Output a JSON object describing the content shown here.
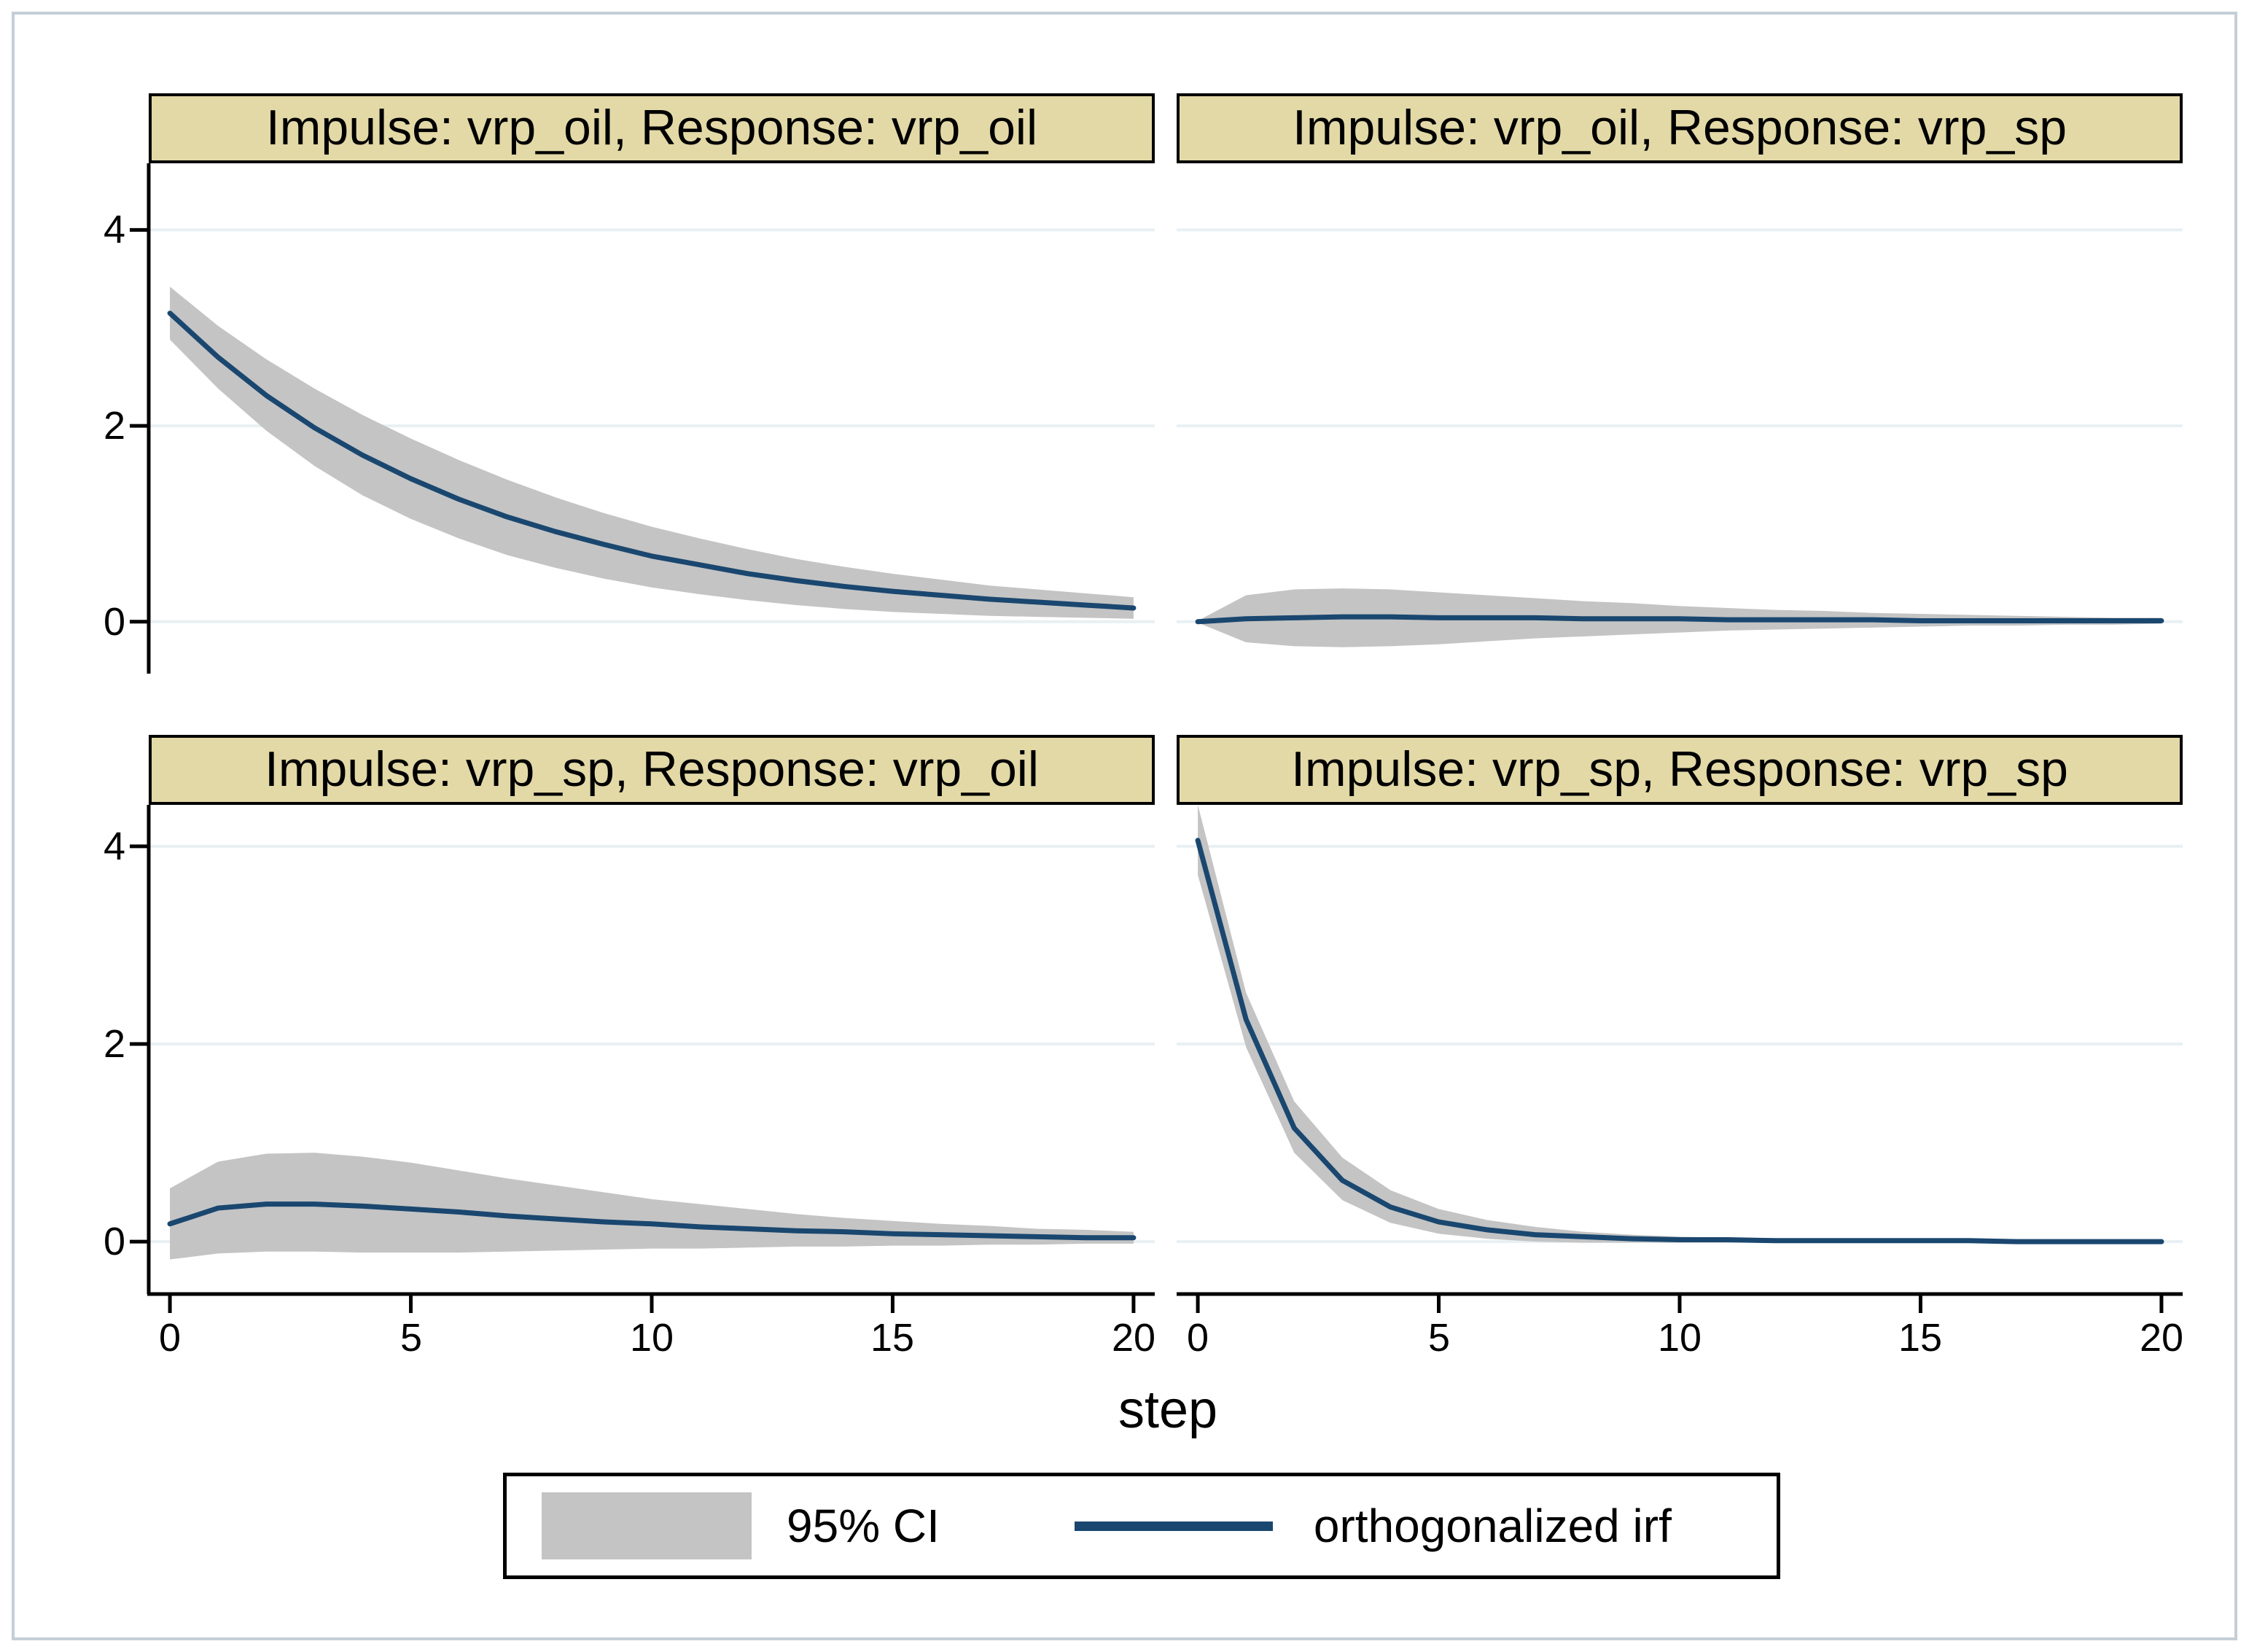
{
  "chart_data": {
    "type": "line",
    "description": "2x2 grid of orthogonalized impulse-response functions with 95% confidence bands (Stata irf graph)",
    "xlabel": "step",
    "x": [
      0,
      1,
      2,
      3,
      4,
      5,
      6,
      7,
      8,
      9,
      10,
      11,
      12,
      13,
      14,
      15,
      16,
      17,
      18,
      19,
      20
    ],
    "xticks": [
      0,
      5,
      10,
      15,
      20
    ],
    "yticks": [
      0,
      2,
      4
    ],
    "xlim": [
      -0.44,
      20.44
    ],
    "ylim_top_row": [
      -0.53,
      4.68
    ],
    "ylim_bottom_row": [
      -0.53,
      4.42
    ],
    "grid": true,
    "legend_position": "bottom-center",
    "legend": {
      "ci": "95% CI",
      "irf": "orthogonalized irf"
    },
    "panels": [
      {
        "title": "Impulse: vrp_oil, Response: vrp_oil",
        "impulse": "vrp_oil",
        "response": "vrp_oil",
        "irf": [
          3.15,
          2.7,
          2.31,
          1.98,
          1.7,
          1.46,
          1.25,
          1.07,
          0.92,
          0.79,
          0.67,
          0.58,
          0.49,
          0.42,
          0.36,
          0.31,
          0.27,
          0.23,
          0.2,
          0.17,
          0.14
        ],
        "ci_upper": [
          3.42,
          3.02,
          2.68,
          2.38,
          2.11,
          1.87,
          1.65,
          1.45,
          1.27,
          1.11,
          0.97,
          0.85,
          0.74,
          0.64,
          0.56,
          0.49,
          0.43,
          0.37,
          0.33,
          0.29,
          0.25
        ],
        "ci_lower": [
          2.88,
          2.38,
          1.95,
          1.59,
          1.29,
          1.05,
          0.85,
          0.68,
          0.55,
          0.44,
          0.35,
          0.28,
          0.22,
          0.17,
          0.13,
          0.1,
          0.08,
          0.06,
          0.05,
          0.04,
          0.03
        ]
      },
      {
        "title": "Impulse: vrp_oil, Response: vrp_sp",
        "impulse": "vrp_oil",
        "response": "vrp_sp",
        "irf": [
          0.0,
          0.03,
          0.04,
          0.05,
          0.05,
          0.04,
          0.04,
          0.04,
          0.03,
          0.03,
          0.03,
          0.02,
          0.02,
          0.02,
          0.02,
          0.01,
          0.01,
          0.01,
          0.01,
          0.01,
          0.01
        ],
        "ci_upper": [
          0.01,
          0.27,
          0.33,
          0.34,
          0.33,
          0.3,
          0.27,
          0.24,
          0.21,
          0.19,
          0.16,
          0.14,
          0.12,
          0.11,
          0.09,
          0.08,
          0.07,
          0.06,
          0.05,
          0.04,
          0.04
        ],
        "ci_lower": [
          -0.01,
          -0.21,
          -0.25,
          -0.26,
          -0.25,
          -0.23,
          -0.2,
          -0.17,
          -0.15,
          -0.13,
          -0.11,
          -0.09,
          -0.08,
          -0.07,
          -0.06,
          -0.05,
          -0.04,
          -0.04,
          -0.03,
          -0.03,
          -0.02
        ]
      },
      {
        "title": "Impulse: vrp_sp, Response: vrp_oil",
        "impulse": "vrp_sp",
        "response": "vrp_oil",
        "irf": [
          0.18,
          0.34,
          0.38,
          0.38,
          0.36,
          0.33,
          0.3,
          0.26,
          0.23,
          0.2,
          0.18,
          0.15,
          0.13,
          0.11,
          0.1,
          0.08,
          0.07,
          0.06,
          0.05,
          0.04,
          0.04
        ],
        "ci_upper": [
          0.54,
          0.81,
          0.89,
          0.9,
          0.86,
          0.8,
          0.72,
          0.64,
          0.57,
          0.5,
          0.43,
          0.38,
          0.33,
          0.28,
          0.24,
          0.21,
          0.18,
          0.16,
          0.13,
          0.12,
          0.1
        ],
        "ci_lower": [
          -0.18,
          -0.12,
          -0.1,
          -0.1,
          -0.11,
          -0.11,
          -0.11,
          -0.1,
          -0.09,
          -0.08,
          -0.07,
          -0.07,
          -0.06,
          -0.05,
          -0.05,
          -0.04,
          -0.04,
          -0.03,
          -0.03,
          -0.02,
          -0.02
        ]
      },
      {
        "title": "Impulse: vrp_sp, Response: vrp_sp",
        "impulse": "vrp_sp",
        "response": "vrp_sp",
        "irf": [
          4.06,
          2.25,
          1.15,
          0.62,
          0.35,
          0.2,
          0.12,
          0.07,
          0.05,
          0.03,
          0.02,
          0.02,
          0.01,
          0.01,
          0.01,
          0.01,
          0.01,
          0.0,
          0.0,
          0.0,
          0.0
        ],
        "ci_upper": [
          4.42,
          2.52,
          1.42,
          0.85,
          0.52,
          0.33,
          0.22,
          0.15,
          0.1,
          0.07,
          0.05,
          0.04,
          0.03,
          0.03,
          0.02,
          0.02,
          0.02,
          0.01,
          0.01,
          0.01,
          0.01
        ],
        "ci_lower": [
          3.71,
          1.97,
          0.9,
          0.42,
          0.19,
          0.08,
          0.03,
          0.0,
          -0.01,
          -0.01,
          -0.01,
          -0.01,
          -0.01,
          -0.01,
          -0.01,
          -0.01,
          -0.01,
          -0.01,
          -0.01,
          -0.01,
          -0.01
        ]
      }
    ],
    "colors": {
      "irf_line": "#1a476f",
      "ci_fill": "#c4c4c4",
      "grid": "#e9f0f3",
      "axis": "#000000",
      "title_bg": "#e3d9a7",
      "frame": "#c4ced6"
    }
  }
}
